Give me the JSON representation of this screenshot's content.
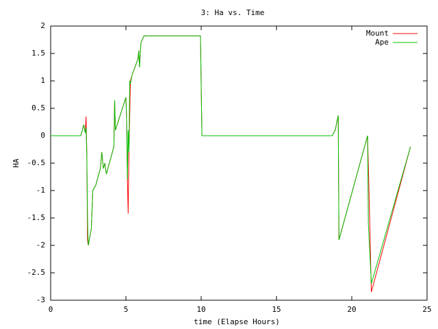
{
  "chart_data": {
    "type": "line",
    "title": "3: Ha vs. Time",
    "xlabel": "time (Elapse Hours)",
    "ylabel": "HA",
    "xlim": [
      0,
      25
    ],
    "xticks": [
      0,
      5,
      10,
      15,
      20,
      25
    ],
    "ylim": [
      -3,
      2
    ],
    "yticks": [
      2,
      1.5,
      1,
      0.5,
      0,
      -0.5,
      -1,
      -1.5,
      -2,
      -2.5,
      -3
    ],
    "legend": "top-right",
    "series": [
      {
        "name": "Mount",
        "color": "#ff0000",
        "x": [
          0,
          2.0,
          2.2,
          2.3,
          2.35,
          2.4,
          2.45,
          2.5,
          2.7,
          2.8,
          3.0,
          3.2,
          3.3,
          3.4,
          3.5,
          3.6,
          3.7,
          4.0,
          4.2,
          4.25,
          4.3,
          5.0,
          5.05,
          5.1,
          5.15,
          5.2,
          5.3,
          5.4,
          5.8,
          5.85,
          5.9,
          6.0,
          6.2,
          9.95,
          10.05,
          18.7,
          18.9,
          19.1,
          19.15,
          21.0,
          21.05,
          21.2,
          21.3,
          23.9
        ],
        "values": [
          0,
          0,
          0.2,
          0.05,
          0.35,
          -0.25,
          -1.9,
          -2,
          -1.7,
          -1.0,
          -0.9,
          -0.7,
          -0.6,
          -0.3,
          -0.6,
          -0.5,
          -0.7,
          -0.4,
          -0.2,
          0.65,
          0.1,
          0.7,
          0.25,
          -0.8,
          -1.42,
          -0.3,
          1.0,
          1.1,
          1.4,
          1.55,
          1.25,
          1.7,
          1.82,
          1.82,
          0,
          0,
          0.1,
          0.37,
          -1.9,
          -0.05,
          0,
          -1.65,
          -2.85,
          -0.2
        ]
      },
      {
        "name": "Ape",
        "color": "#00c000",
        "x": [
          0,
          2.0,
          2.2,
          2.3,
          2.35,
          2.4,
          2.45,
          2.5,
          2.7,
          2.8,
          3.0,
          3.2,
          3.3,
          3.4,
          3.5,
          3.6,
          3.7,
          4.0,
          4.2,
          4.25,
          4.3,
          5.0,
          5.05,
          5.1,
          5.15,
          5.2,
          5.25,
          5.3,
          5.4,
          5.8,
          5.85,
          5.9,
          6.0,
          6.2,
          9.95,
          10.05,
          18.7,
          18.9,
          19.1,
          19.15,
          21.0,
          21.05,
          21.1,
          21.3,
          23.9
        ],
        "values": [
          0,
          0,
          0.2,
          0.05,
          0.15,
          -0.3,
          -1.5,
          -2,
          -1.7,
          -1.0,
          -0.9,
          -0.7,
          -0.6,
          -0.3,
          -0.6,
          -0.5,
          -0.7,
          -0.4,
          -0.2,
          0.65,
          0.1,
          0.7,
          0.25,
          -0.8,
          0.1,
          -0.3,
          1.0,
          0.95,
          1.1,
          1.4,
          1.55,
          1.25,
          1.7,
          1.82,
          1.82,
          0,
          0,
          0.1,
          0.37,
          -1.9,
          -0.05,
          0,
          -1.6,
          -2.7,
          -0.2
        ]
      }
    ]
  }
}
